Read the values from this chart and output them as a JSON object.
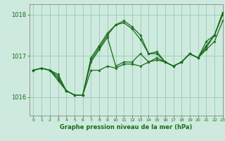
{
  "title": "Graphe pression niveau de la mer (hPa)",
  "bg_color": "#ceeade",
  "grid_color": "#9ecfb8",
  "line_color": "#1a6b1a",
  "marker_color": "#1a6b1a",
  "xlim": [
    -0.5,
    23
  ],
  "ylim": [
    1015.55,
    1018.25
  ],
  "yticks": [
    1016,
    1017,
    1018
  ],
  "xticks": [
    0,
    1,
    2,
    3,
    4,
    5,
    6,
    7,
    8,
    9,
    10,
    11,
    12,
    13,
    14,
    15,
    16,
    17,
    18,
    19,
    20,
    21,
    22,
    23
  ],
  "series": [
    [
      1016.65,
      1016.7,
      1016.65,
      1016.55,
      1016.15,
      1016.05,
      1016.05,
      1016.65,
      1016.65,
      1016.75,
      1016.7,
      1016.8,
      1016.8,
      1016.75,
      1016.85,
      1016.9,
      1016.85,
      1016.75,
      1016.85,
      1017.05,
      1016.95,
      1017.15,
      1017.35,
      1017.85
    ],
    [
      1016.65,
      1016.7,
      1016.65,
      1016.5,
      1016.15,
      1016.05,
      1016.05,
      1016.85,
      1017.15,
      1017.45,
      1016.75,
      1016.85,
      1016.85,
      1017.05,
      1016.85,
      1016.95,
      1016.85,
      1016.75,
      1016.85,
      1017.05,
      1016.95,
      1017.2,
      1017.5,
      1018.0
    ],
    [
      1016.65,
      1016.7,
      1016.65,
      1016.45,
      1016.15,
      1016.05,
      1016.05,
      1016.9,
      1017.2,
      1017.5,
      1017.75,
      1017.8,
      1017.65,
      1017.4,
      1017.05,
      1017.05,
      1016.85,
      1016.75,
      1016.85,
      1017.05,
      1016.95,
      1017.25,
      1017.5,
      1018.05
    ],
    [
      1016.65,
      1016.7,
      1016.65,
      1016.4,
      1016.15,
      1016.05,
      1016.05,
      1016.95,
      1017.25,
      1017.55,
      1017.75,
      1017.85,
      1017.7,
      1017.5,
      1017.05,
      1017.1,
      1016.85,
      1016.75,
      1016.85,
      1017.05,
      1016.95,
      1017.35,
      1017.5,
      1018.05
    ]
  ]
}
